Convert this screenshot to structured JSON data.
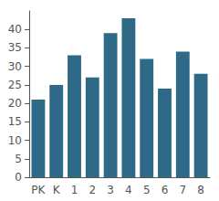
{
  "chart_data": {
    "type": "bar",
    "categories": [
      "PK",
      "K",
      "1",
      "2",
      "3",
      "4",
      "5",
      "6",
      "7",
      "8"
    ],
    "values": [
      21,
      25,
      33,
      27,
      39,
      43,
      32,
      24,
      34,
      28
    ],
    "color": "#2e6a87",
    "ylim": [
      0,
      45
    ],
    "yticks": [
      0,
      5,
      10,
      15,
      20,
      25,
      30,
      35,
      40
    ],
    "grid": false
  }
}
